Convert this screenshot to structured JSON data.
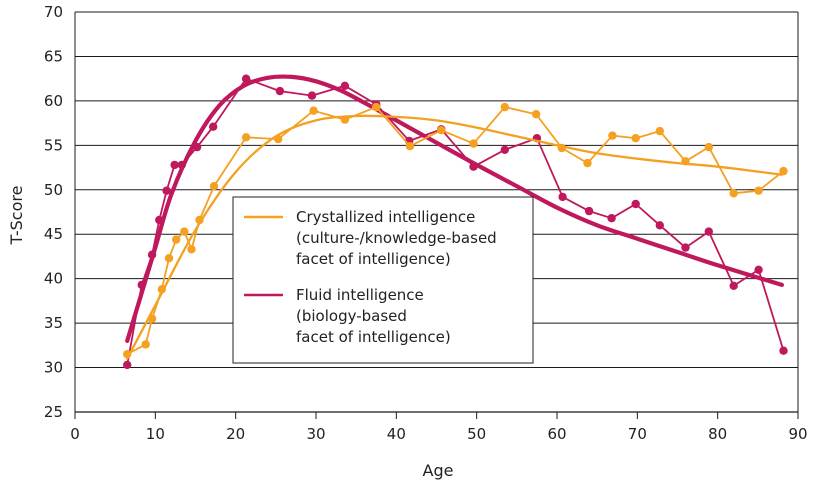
{
  "chart_data": {
    "type": "line",
    "title": "",
    "xlabel": "Age",
    "ylabel": "T-Score",
    "xlim": [
      0,
      90
    ],
    "ylim": [
      25,
      70
    ],
    "x_ticks": [
      0,
      10,
      20,
      30,
      40,
      50,
      60,
      70,
      80,
      90
    ],
    "y_ticks": [
      25,
      30,
      35,
      40,
      45,
      50,
      55,
      60,
      65,
      70
    ],
    "grid": "horizontal",
    "legend_position": "center",
    "series": [
      {
        "name": "Crystallized intelligence",
        "legend_lines": [
          "Crystallized intelligence",
          "(culture-/knowledge-based",
          "facet of intelligence)"
        ],
        "color": "#F4A020",
        "points": [
          [
            6.5,
            31.5
          ],
          [
            8.8,
            32.6
          ],
          [
            9.6,
            35.5
          ],
          [
            10.8,
            38.8
          ],
          [
            11.7,
            42.3
          ],
          [
            12.6,
            44.4
          ],
          [
            13.6,
            45.3
          ],
          [
            14.5,
            43.3
          ],
          [
            15.5,
            46.6
          ],
          [
            17.3,
            50.4
          ],
          [
            21.3,
            55.9
          ],
          [
            25.3,
            55.7
          ],
          [
            29.7,
            58.9
          ],
          [
            33.6,
            57.9
          ],
          [
            37.5,
            59.3
          ],
          [
            41.7,
            54.9
          ],
          [
            45.6,
            56.7
          ],
          [
            49.6,
            55.2
          ],
          [
            53.5,
            59.3
          ],
          [
            57.4,
            58.5
          ],
          [
            60.6,
            54.7
          ],
          [
            63.8,
            53.0
          ],
          [
            66.9,
            56.1
          ],
          [
            69.8,
            55.8
          ],
          [
            72.8,
            56.6
          ],
          [
            76.0,
            53.2
          ],
          [
            78.9,
            54.8
          ],
          [
            82.0,
            49.6
          ],
          [
            85.1,
            49.9
          ],
          [
            88.2,
            52.1
          ]
        ],
        "trend": [
          [
            6.5,
            31.0
          ],
          [
            10,
            37.0
          ],
          [
            15,
            45.5
          ],
          [
            20,
            52.0
          ],
          [
            25,
            56.0
          ],
          [
            30,
            57.8
          ],
          [
            35,
            58.3
          ],
          [
            40,
            58.2
          ],
          [
            45,
            57.8
          ],
          [
            50,
            57.0
          ],
          [
            55,
            56.0
          ],
          [
            60,
            55.0
          ],
          [
            65,
            54.1
          ],
          [
            70,
            53.5
          ],
          [
            75,
            53.0
          ],
          [
            80,
            52.6
          ],
          [
            88,
            51.7
          ]
        ]
      },
      {
        "name": "Fluid intelligence",
        "legend_lines": [
          "Fluid intelligence",
          "(biology-based",
          "facet of intelligence)"
        ],
        "color": "#C0185C",
        "points": [
          [
            6.5,
            30.3
          ],
          [
            8.3,
            39.3
          ],
          [
            9.6,
            42.7
          ],
          [
            10.5,
            46.6
          ],
          [
            11.4,
            49.9
          ],
          [
            12.4,
            52.8
          ],
          [
            13.3,
            52.8
          ],
          [
            15.2,
            54.8
          ],
          [
            17.2,
            57.1
          ],
          [
            21.3,
            62.5
          ],
          [
            25.5,
            61.1
          ],
          [
            29.5,
            60.6
          ],
          [
            33.6,
            61.7
          ],
          [
            37.5,
            59.6
          ],
          [
            41.6,
            55.5
          ],
          [
            45.6,
            56.8
          ],
          [
            49.6,
            52.6
          ],
          [
            53.5,
            54.5
          ],
          [
            57.5,
            55.8
          ],
          [
            60.7,
            49.2
          ],
          [
            64.0,
            47.6
          ],
          [
            66.8,
            46.8
          ],
          [
            69.8,
            48.4
          ],
          [
            72.8,
            46.0
          ],
          [
            76.0,
            43.5
          ],
          [
            78.9,
            45.3
          ],
          [
            82.0,
            39.2
          ],
          [
            85.1,
            41.0
          ],
          [
            88.2,
            31.9
          ]
        ],
        "trend": [
          [
            6.5,
            33.0
          ],
          [
            8,
            37.5
          ],
          [
            10,
            43.5
          ],
          [
            12,
            49.5
          ],
          [
            15,
            55.5
          ],
          [
            18,
            59.5
          ],
          [
            21,
            61.7
          ],
          [
            24,
            62.6
          ],
          [
            27,
            62.7
          ],
          [
            30,
            62.2
          ],
          [
            33,
            61.2
          ],
          [
            36,
            59.8
          ],
          [
            40,
            57.8
          ],
          [
            45,
            55.3
          ],
          [
            50,
            52.8
          ],
          [
            55,
            50.4
          ],
          [
            60,
            48.0
          ],
          [
            65,
            46.0
          ],
          [
            70,
            44.5
          ],
          [
            75,
            43.0
          ],
          [
            80,
            41.5
          ],
          [
            88,
            39.3
          ]
        ]
      }
    ]
  }
}
